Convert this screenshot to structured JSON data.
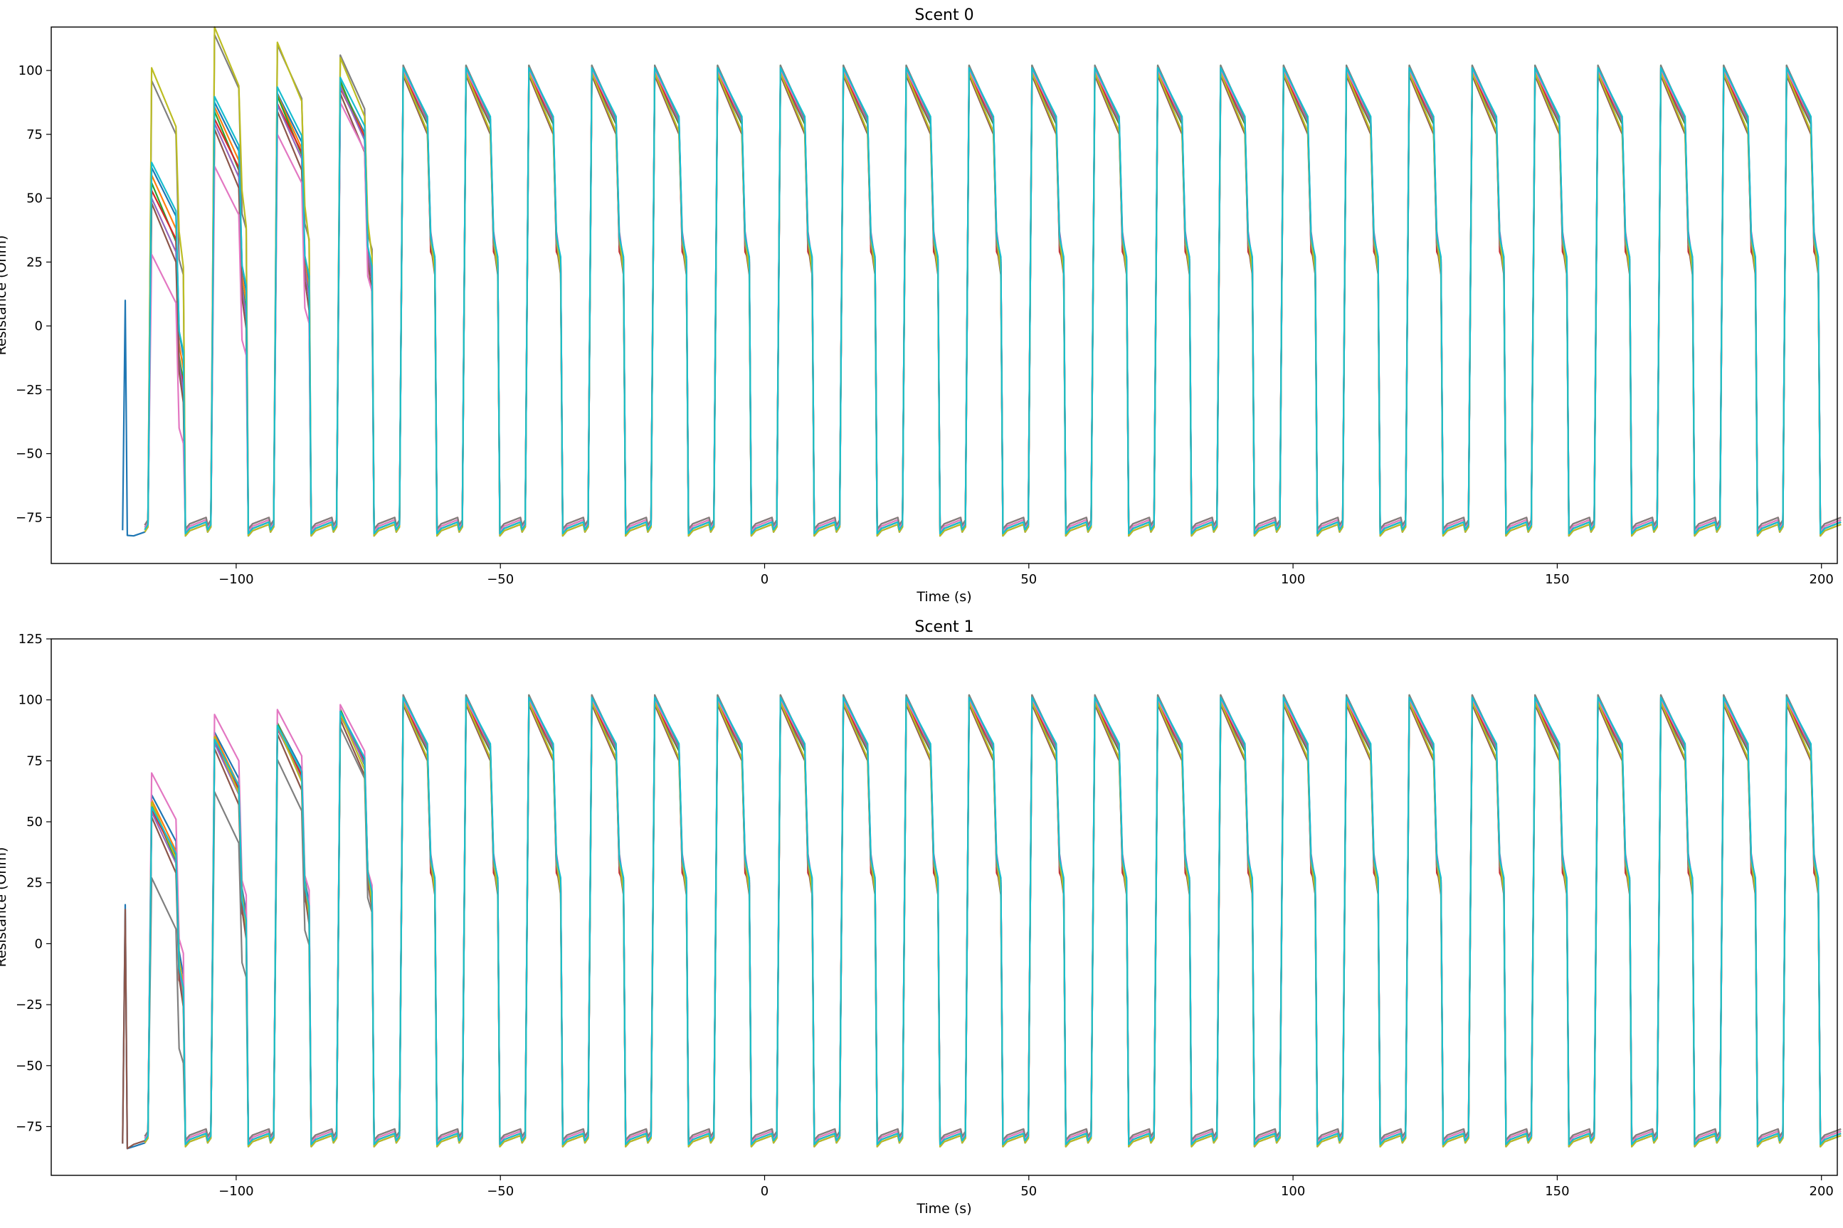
{
  "chart_data": [
    {
      "type": "line",
      "title": "Scent 0",
      "xlabel": "Time (s)",
      "ylabel": "Resistance (Ohm)",
      "xlim": [
        -135,
        203
      ],
      "ylim": [
        -93,
        117
      ],
      "xticks": [
        -100,
        -50,
        0,
        50,
        100,
        150,
        200
      ],
      "yticks": [
        -75,
        -50,
        -25,
        0,
        25,
        50,
        75,
        100
      ],
      "grid": false,
      "legend": "none",
      "series_count": 10,
      "pulse_start_s": -117,
      "pulse_period_s": 11.9,
      "pulse_count": 27,
      "x_end_s": 200,
      "baseline_ohm": -78,
      "first_pulse_peaks_ohm": [
        62,
        59,
        56,
        53,
        50,
        48,
        28,
        96,
        101,
        64
      ],
      "steady_peak_ohm": 100,
      "series_colors": [
        "#1f77b4",
        "#ff7f0e",
        "#2ca02c",
        "#d62728",
        "#9467bd",
        "#8c564b",
        "#e377c2",
        "#7f7f7f",
        "#bcbd22",
        "#17becf"
      ],
      "initial_spike": {
        "x": -121,
        "min_ohm": -82,
        "max_ohm": 10
      }
    },
    {
      "type": "line",
      "title": "Scent 1",
      "xlabel": "Time (s)",
      "ylabel": "Resistance (Ohm)",
      "xlim": [
        -135,
        203
      ],
      "ylim": [
        -95,
        125
      ],
      "xticks": [
        -100,
        -50,
        0,
        50,
        100,
        150,
        200
      ],
      "yticks": [
        -75,
        -50,
        -25,
        0,
        25,
        50,
        75,
        100,
        125
      ],
      "grid": false,
      "legend": "none",
      "series_count": 10,
      "pulse_start_s": -117,
      "pulse_period_s": 11.9,
      "pulse_count": 27,
      "x_end_s": 200,
      "baseline_ohm": -79,
      "first_pulse_peaks_ohm": [
        61,
        59,
        57,
        55,
        54,
        52,
        70,
        27,
        58,
        56
      ],
      "steady_peak_ohm": 100,
      "series_colors": [
        "#1f77b4",
        "#ff7f0e",
        "#2ca02c",
        "#d62728",
        "#9467bd",
        "#8c564b",
        "#e377c2",
        "#7f7f7f",
        "#bcbd22",
        "#17becf"
      ],
      "initial_spike": {
        "x": -121,
        "min_ohm": -84,
        "max_ohm": 16
      }
    }
  ]
}
